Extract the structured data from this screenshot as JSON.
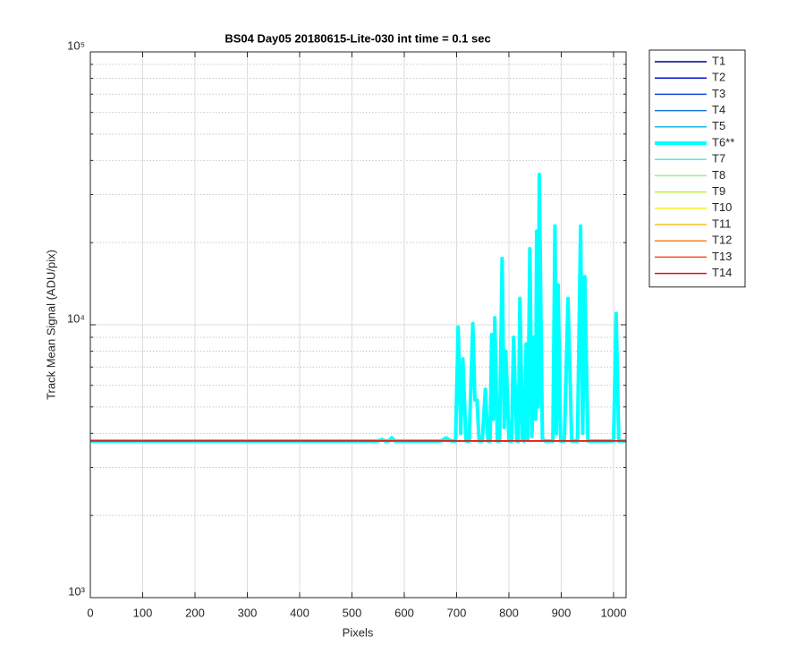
{
  "chart_data": {
    "type": "line",
    "title": "BS04 Day05 20180615-Lite-030 int time = 0.1 sec",
    "xlabel": "Pixels",
    "ylabel": "Track Mean Signal (ADU/pix)",
    "xlim": [
      0,
      1024
    ],
    "xticks": [
      0,
      100,
      200,
      300,
      400,
      500,
      600,
      700,
      800,
      900,
      1000
    ],
    "ylim": [
      1000,
      100000
    ],
    "yscale": "log",
    "yticks": [
      {
        "value": 1000,
        "label": "10³"
      },
      {
        "value": 10000,
        "label": "10⁴"
      },
      {
        "value": 100000,
        "label": "10⁵"
      }
    ],
    "grid": true,
    "legend": "northeastoutside",
    "series": [
      {
        "name": "T1",
        "color": "#00008f",
        "linewidth": 1.5,
        "x": [
          1,
          1024
        ],
        "values": [
          3750,
          3750
        ]
      },
      {
        "name": "T2",
        "color": "#0010c8",
        "linewidth": 1.5,
        "x": [
          1,
          1024
        ],
        "values": [
          3750,
          3750
        ]
      },
      {
        "name": "T3",
        "color": "#1444d8",
        "linewidth": 1.5,
        "x": [
          1,
          1024
        ],
        "values": [
          3750,
          3750
        ]
      },
      {
        "name": "T4",
        "color": "#1a78e0",
        "linewidth": 1.5,
        "x": [
          1,
          1024
        ],
        "values": [
          3750,
          3750
        ]
      },
      {
        "name": "T5",
        "color": "#20b4ec",
        "linewidth": 1.5,
        "x": [
          1,
          1024
        ],
        "values": [
          3750,
          3750
        ]
      },
      {
        "name": "T6**",
        "color": "#00ffff",
        "linewidth": 4,
        "x": [
          0,
          550,
          557,
          564,
          570,
          576,
          582,
          670,
          680,
          690,
          698,
          703,
          708,
          712,
          718,
          724,
          731,
          735,
          739,
          743,
          749,
          755,
          760,
          764,
          767,
          770,
          773,
          778,
          782,
          787,
          791,
          794,
          800,
          805,
          809,
          815,
          818,
          821,
          826,
          829,
          833,
          836,
          840,
          844,
          848,
          851,
          853,
          856,
          858,
          864,
          870,
          884,
          888,
          891,
          894,
          899,
          906,
          913,
          920,
          931,
          937,
          941,
          945,
          951,
          1000,
          1005,
          1010,
          1024
        ],
        "values": [
          3750,
          3750,
          3800,
          3750,
          3750,
          3850,
          3750,
          3750,
          3850,
          3750,
          3750,
          9800,
          4000,
          7500,
          3750,
          3750,
          10100,
          5300,
          5300,
          3750,
          3750,
          5800,
          3750,
          3750,
          9200,
          4500,
          10600,
          3750,
          3750,
          17500,
          4200,
          8000,
          3750,
          3750,
          9000,
          3750,
          3750,
          12500,
          3800,
          3750,
          8500,
          3800,
          19000,
          3900,
          9000,
          4500,
          22000,
          5000,
          35500,
          3800,
          3750,
          3750,
          23000,
          4000,
          14000,
          3750,
          3750,
          12500,
          3750,
          3750,
          23000,
          4000,
          15000,
          3750,
          3750,
          11000,
          3750,
          3750
        ]
      },
      {
        "name": "T7",
        "color": "#50f0c8",
        "linewidth": 1.5,
        "x": [
          1,
          1024
        ],
        "values": [
          3750,
          3750
        ]
      },
      {
        "name": "T8",
        "color": "#88f888",
        "linewidth": 1.5,
        "x": [
          1,
          1024
        ],
        "values": [
          3750,
          3750
        ]
      },
      {
        "name": "T9",
        "color": "#c0f040",
        "linewidth": 1.5,
        "x": [
          1,
          1024
        ],
        "values": [
          3750,
          3750
        ]
      },
      {
        "name": "T10",
        "color": "#f8f020",
        "linewidth": 1.5,
        "x": [
          1,
          1024
        ],
        "values": [
          3750,
          3750
        ]
      },
      {
        "name": "T11",
        "color": "#f8c020",
        "linewidth": 1.5,
        "x": [
          1,
          1024
        ],
        "values": [
          3750,
          3750
        ]
      },
      {
        "name": "T12",
        "color": "#f88020",
        "linewidth": 1.5,
        "x": [
          1,
          1024
        ],
        "values": [
          3750,
          3750
        ]
      },
      {
        "name": "T13",
        "color": "#f84818",
        "linewidth": 1.5,
        "x": [
          1,
          1024
        ],
        "values": [
          3750,
          3750
        ]
      },
      {
        "name": "T14",
        "color": "#e01010",
        "linewidth": 1.5,
        "x": [
          1,
          1024
        ],
        "values": [
          3750,
          3750
        ]
      }
    ]
  }
}
